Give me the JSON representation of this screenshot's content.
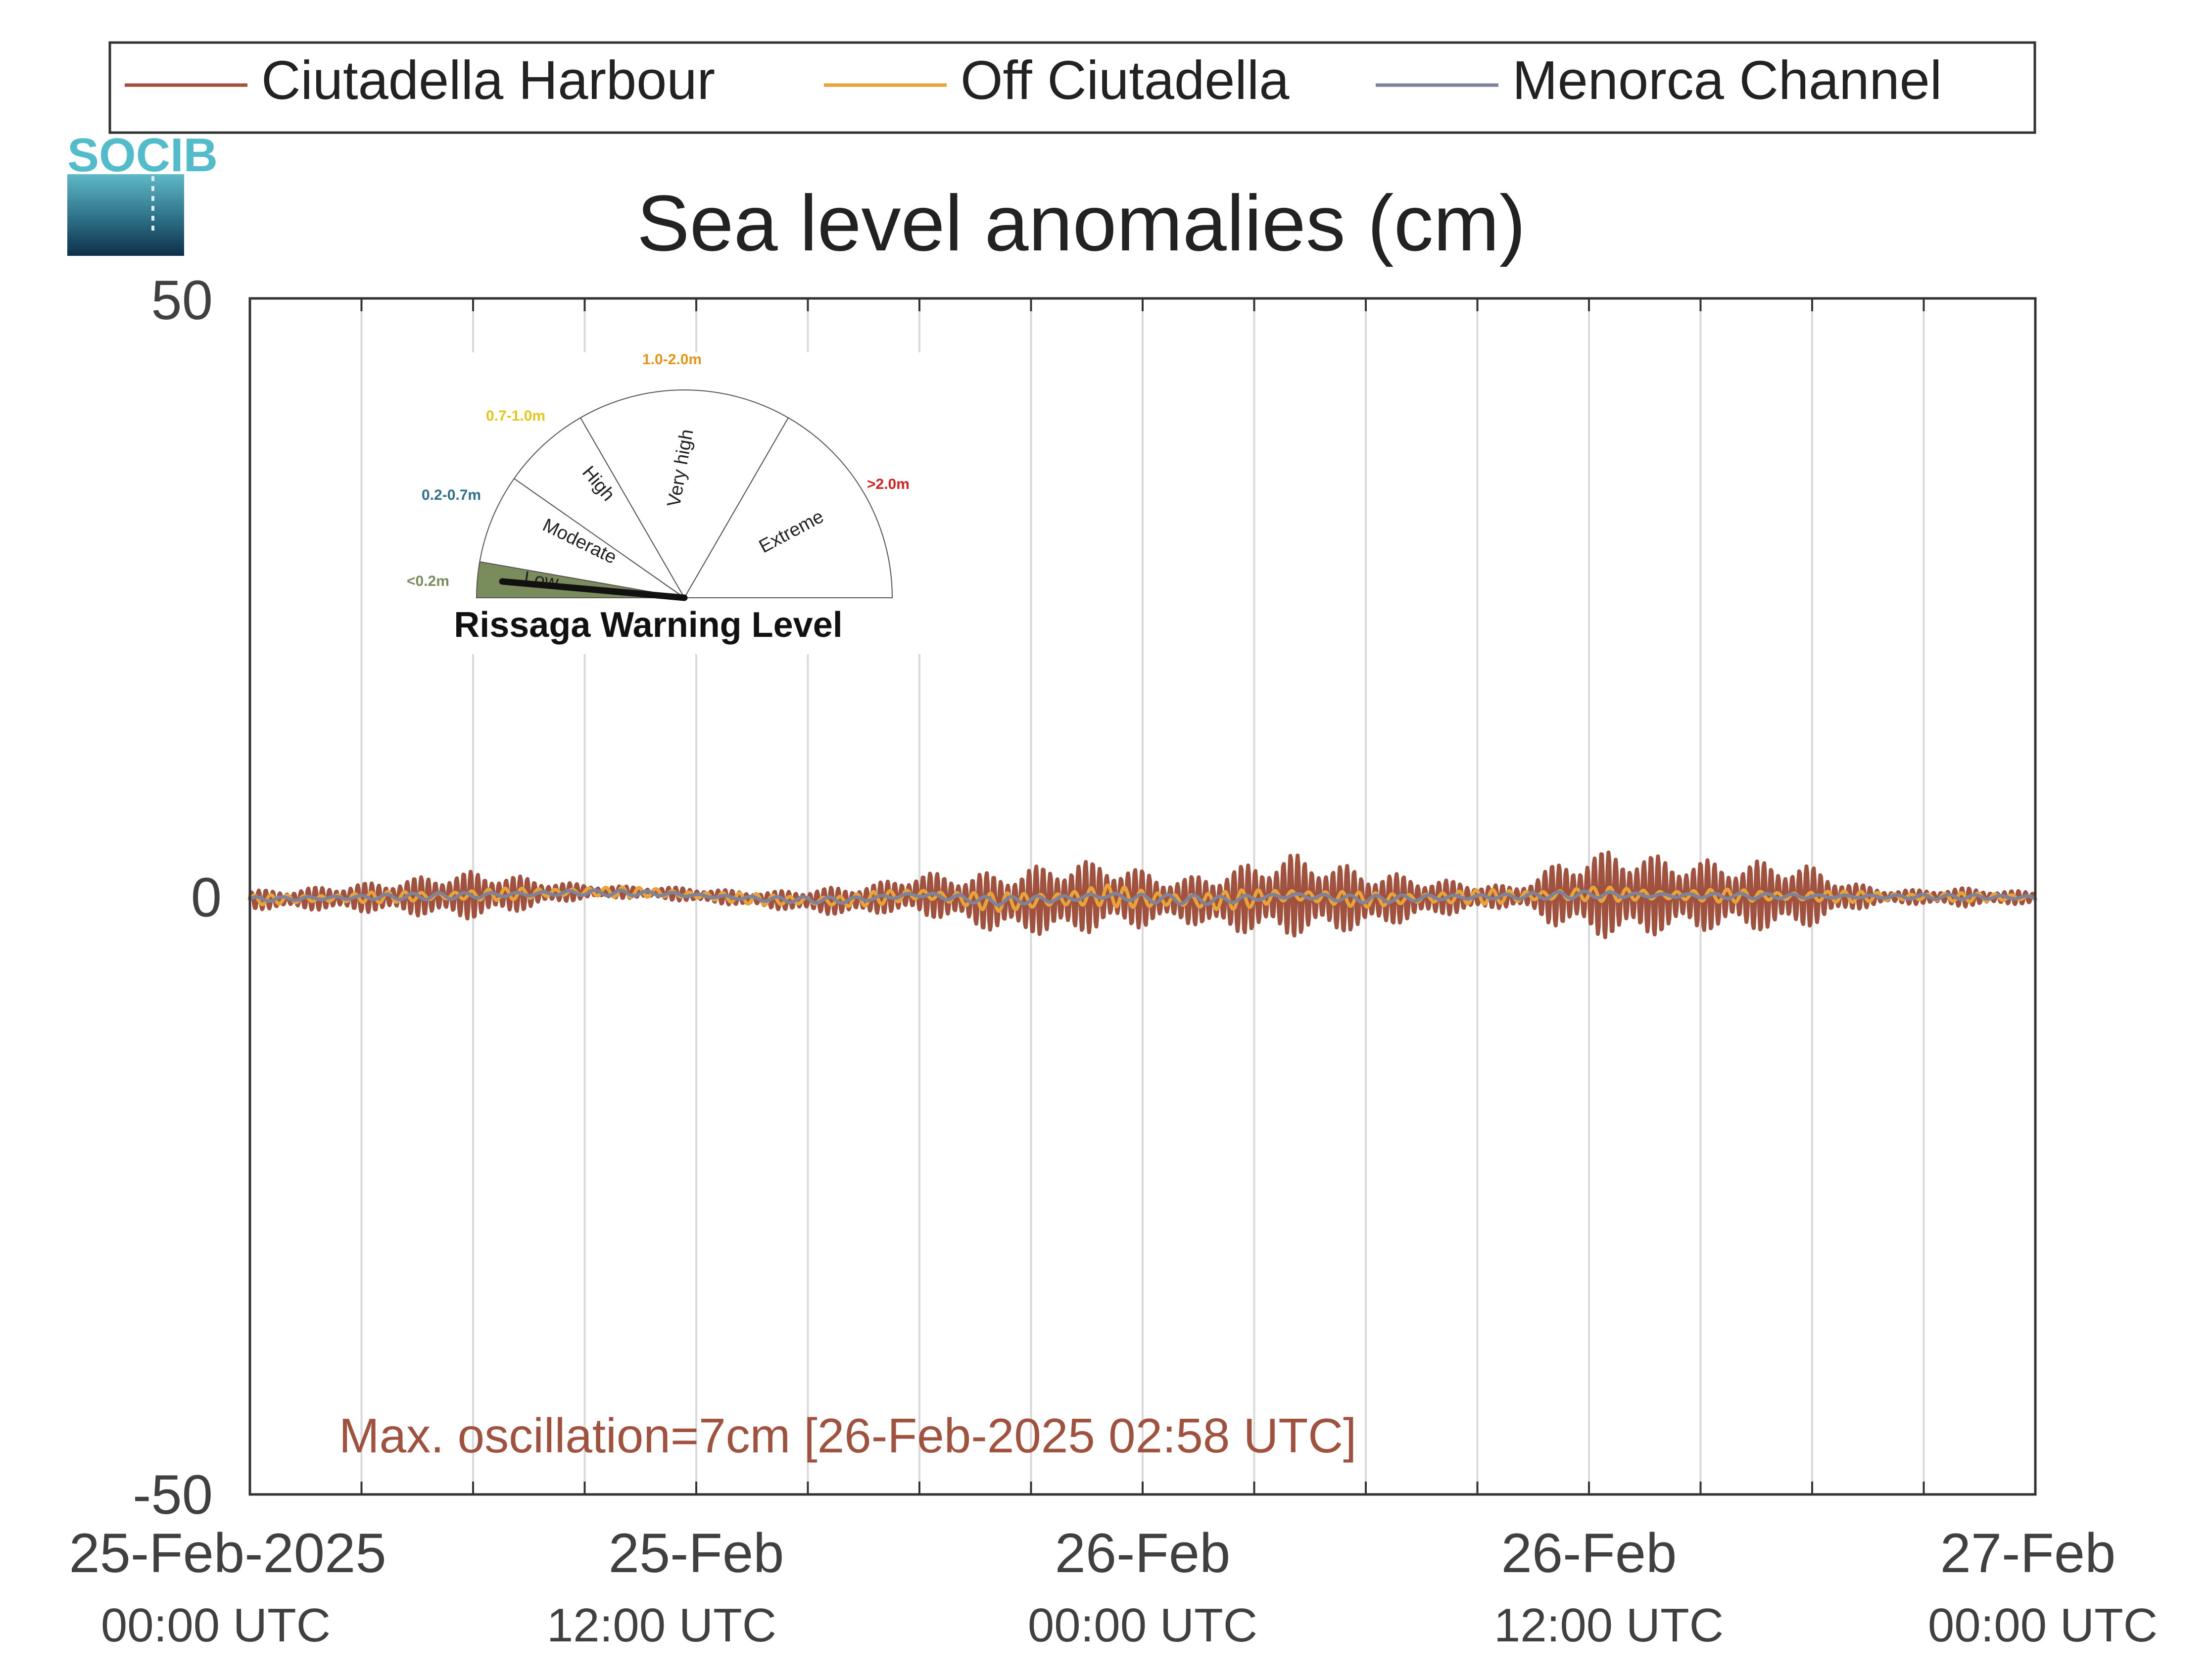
{
  "logo": {
    "text": "SOCIB"
  },
  "colors": {
    "harbour": "#A0523F",
    "off": "#E8A33A",
    "channel": "#7E8399",
    "grid": "#d9d9d9",
    "gauge_low": "#7A8B5C",
    "label_low": "#7A8B5C",
    "label_moderate": "#2F6F8F",
    "label_high": "#E6C619",
    "label_veryhigh": "#E8941A",
    "label_extreme": "#D62020"
  },
  "gauge": {
    "title": "Rissaga Warning Level",
    "sectors": [
      "Low",
      "Moderate",
      "High",
      "Very high",
      "Extreme"
    ],
    "ranges": [
      "<0.2m",
      "0.2-0.7m",
      "0.7-1.0m",
      "1.0-2.0m",
      ">2.0m"
    ],
    "current_level": "Low"
  },
  "chart_data": {
    "type": "line",
    "title": "Sea level anomalies (cm)",
    "ylim": [
      -50,
      50
    ],
    "yticks": [
      -50,
      0,
      50
    ],
    "xlim": [
      "2025-02-25T00:00",
      "2025-02-27T00:00"
    ],
    "xticks": [
      {
        "at": "2025-02-25T00:00",
        "line1": "25-Feb-2025",
        "line2": "00:00 UTC"
      },
      {
        "at": "2025-02-25T12:00",
        "line1": "25-Feb",
        "line2": "12:00 UTC"
      },
      {
        "at": "2025-02-26T00:00",
        "line1": "26-Feb",
        "line2": "00:00 UTC"
      },
      {
        "at": "2025-02-26T12:00",
        "line1": "26-Feb",
        "line2": "12:00 UTC"
      },
      {
        "at": "2025-02-27T00:00",
        "line1": "27-Feb",
        "line2": "00:00 UTC"
      }
    ],
    "grid": true,
    "legend_position": "top",
    "annotation": "Max. oscillation=7cm [26-Feb-2025 02:58 UTC]",
    "series": [
      {
        "name": "Ciutadella Harbour",
        "color_key": "harbour",
        "envelope_hours": [
          0,
          1,
          2,
          3,
          4,
          5,
          6,
          7,
          8,
          9,
          10,
          11,
          12,
          13,
          14,
          15,
          16,
          17,
          18,
          19,
          20,
          21,
          22,
          23,
          24,
          25,
          26,
          27,
          28,
          29,
          30,
          31,
          32,
          33,
          34,
          35,
          36,
          37,
          38,
          39,
          40,
          41,
          42,
          43,
          44,
          45,
          46,
          47,
          48
        ],
        "envelope_cm": [
          0.8,
          0.8,
          1.0,
          1.2,
          1.4,
          1.8,
          2.0,
          1.6,
          1.0,
          0.6,
          0.5,
          0.5,
          0.6,
          0.6,
          0.7,
          1.0,
          1.2,
          1.3,
          1.8,
          2.0,
          2.5,
          2.8,
          3.2,
          2.8,
          2.4,
          1.8,
          2.5,
          3.0,
          3.5,
          3.0,
          2.5,
          2.0,
          1.5,
          1.2,
          0.8,
          2.5,
          3.5,
          3.8,
          3.2,
          3.0,
          2.8,
          3.0,
          2.5,
          1.2,
          0.6,
          0.6,
          0.8,
          0.6,
          0.5
        ]
      },
      {
        "name": "Off Ciutadella",
        "color_key": "off",
        "envelope_hours": [
          0,
          6,
          12,
          18,
          22,
          26,
          30,
          36,
          42,
          48
        ],
        "envelope_cm": [
          0.4,
          0.5,
          0.4,
          0.6,
          0.9,
          0.8,
          0.6,
          0.6,
          0.5,
          0.3
        ]
      },
      {
        "name": "Menorca Channel",
        "color_key": "channel",
        "envelope_hours": [
          0,
          6,
          12,
          18,
          24,
          30,
          36,
          42,
          48
        ],
        "envelope_cm": [
          0.2,
          0.3,
          0.2,
          0.3,
          0.4,
          0.3,
          0.3,
          0.2,
          0.2
        ]
      }
    ],
    "baseline_hours": [
      0,
      6,
      9,
      11,
      14,
      16,
      18,
      20,
      22,
      23,
      24,
      26,
      28,
      30,
      32,
      34,
      36,
      38,
      42,
      48
    ],
    "baseline_cm": [
      -0.3,
      0.1,
      0.4,
      0.3,
      -0.3,
      -0.4,
      0.2,
      -0.5,
      -0.2,
      0.1,
      -0.2,
      -0.4,
      0.1,
      -0.3,
      -0.1,
      0.0,
      0.2,
      0.1,
      0.0,
      -0.1
    ]
  }
}
